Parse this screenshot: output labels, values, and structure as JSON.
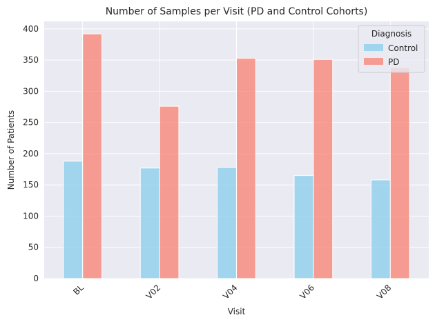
{
  "chart_data": {
    "type": "bar",
    "title": "Number of Samples per Visit (PD and Control Cohorts)",
    "xlabel": "Visit",
    "ylabel": "Number of Patients",
    "categories": [
      "BL",
      "V02",
      "V04",
      "V06",
      "V08"
    ],
    "series": [
      {
        "name": "Control",
        "values": [
          188,
          177,
          178,
          165,
          158
        ],
        "color": "#87ceeb"
      },
      {
        "name": "PD",
        "values": [
          392,
          276,
          353,
          351,
          338
        ],
        "color": "#fa8072"
      }
    ],
    "ylim": [
      0,
      412
    ],
    "yticks": [
      0,
      50,
      100,
      150,
      200,
      250,
      300,
      350,
      400
    ],
    "grid": true,
    "legend": {
      "title": "Diagnosis",
      "placement": "top-right"
    },
    "background": "#eaeaf2"
  }
}
